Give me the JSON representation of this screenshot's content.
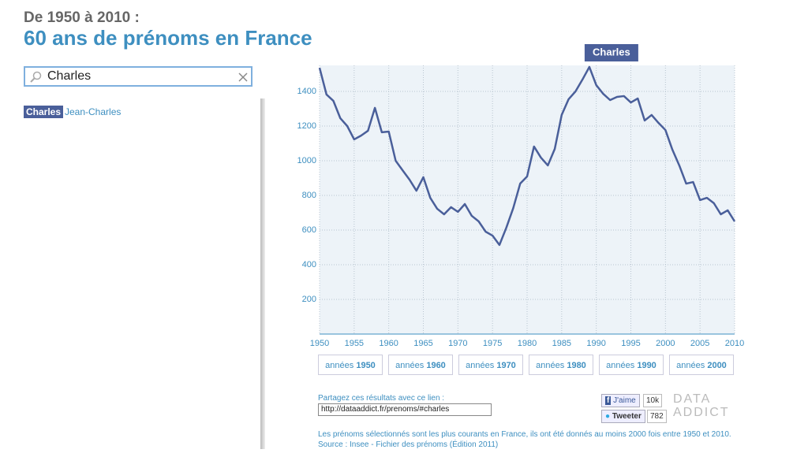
{
  "header": {
    "subtitle": "De 1950 à 2010 :",
    "title": "60 ans de prénoms en France"
  },
  "search": {
    "value": "Charles"
  },
  "results": [
    "Charles",
    "Jean-Charles"
  ],
  "chart_data": {
    "type": "line",
    "x": [
      1950,
      1951,
      1952,
      1953,
      1954,
      1955,
      1956,
      1957,
      1958,
      1959,
      1960,
      1961,
      1962,
      1963,
      1964,
      1965,
      1966,
      1967,
      1968,
      1969,
      1970,
      1971,
      1972,
      1973,
      1974,
      1975,
      1976,
      1977,
      1978,
      1979,
      1980,
      1981,
      1982,
      1983,
      1984,
      1985,
      1986,
      1987,
      1988,
      1989,
      1990,
      1991,
      1992,
      1993,
      1994,
      1995,
      1996,
      1997,
      1998,
      1999,
      2000,
      2001,
      2002,
      2003,
      2004,
      2005,
      2006,
      2007,
      2008,
      2009,
      2010
    ],
    "series": [
      {
        "name": "Charles",
        "color": "#4a5f9a",
        "values": [
          1536,
          1382,
          1345,
          1245,
          1200,
          1123,
          1145,
          1173,
          1305,
          1164,
          1168,
          1000,
          945,
          891,
          827,
          905,
          786,
          723,
          691,
          732,
          705,
          750,
          682,
          650,
          591,
          568,
          514,
          614,
          727,
          868,
          909,
          1082,
          1018,
          973,
          1068,
          1264,
          1355,
          1400,
          1468,
          1541,
          1436,
          1386,
          1350,
          1368,
          1373,
          1336,
          1359,
          1232,
          1264,
          1218,
          1177,
          1064,
          973,
          868,
          877,
          773,
          786,
          755,
          691,
          714,
          650
        ]
      }
    ],
    "xlim": [
      1950,
      2010
    ],
    "ylim": [
      0,
      1550
    ],
    "xticks": [
      1950,
      1955,
      1960,
      1965,
      1970,
      1975,
      1980,
      1985,
      1990,
      1995,
      2000,
      2005,
      2010
    ],
    "yticks": [
      200,
      400,
      600,
      800,
      1000,
      1200,
      1400
    ],
    "grid": true
  },
  "decades": [
    {
      "label": "années",
      "decade": "1950"
    },
    {
      "label": "années",
      "decade": "1960"
    },
    {
      "label": "années",
      "decade": "1970"
    },
    {
      "label": "années",
      "decade": "1980"
    },
    {
      "label": "années",
      "decade": "1990"
    },
    {
      "label": "années",
      "decade": "2000"
    }
  ],
  "share": {
    "label": "Partagez ces résultats avec ce lien :",
    "url": "http://dataaddict.fr/prenoms/#charles"
  },
  "social": {
    "like": "J'aime",
    "like_count": "10k",
    "tweet": "Tweeter",
    "tweet_count": "782"
  },
  "logo": {
    "line1": "DATA",
    "line2": "ADDICT"
  },
  "footer": [
    "Les prénoms sélectionnés sont les plus courants en France, ils ont été donnés au moins 2000 fois entre 1950 et 2010.",
    "Source : Insee - Fichier des prénoms (Édition 2011)"
  ]
}
